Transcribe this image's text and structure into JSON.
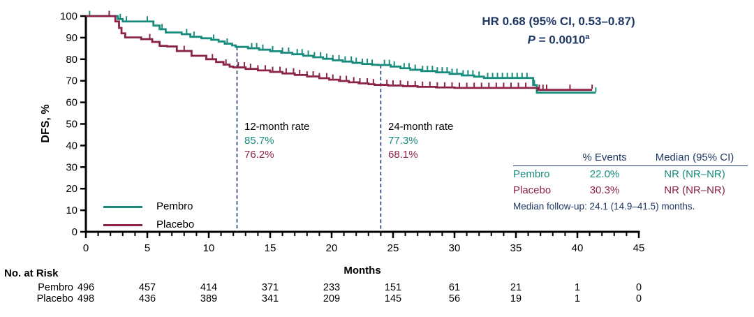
{
  "hr_annotation": {
    "line1": "HR 0.68 (95% CI, 0.53–0.87)",
    "p_italic": "P",
    "p_rest": " = 0.0010",
    "p_sup": "a"
  },
  "chart_data": {
    "type": "line",
    "subtype": "kaplan-meier-step",
    "title": "",
    "xlabel": "Months",
    "ylabel": "DFS, %",
    "xlim": [
      0,
      45
    ],
    "ylim": [
      0,
      100
    ],
    "x_major_ticks": [
      0,
      5,
      10,
      15,
      20,
      25,
      30,
      35,
      40,
      45
    ],
    "x_minor_tick_every": 1,
    "y_ticks": [
      0,
      10,
      20,
      30,
      40,
      50,
      60,
      70,
      80,
      90,
      100
    ],
    "grid": false,
    "legend_position": "lower-left",
    "colors": {
      "pembro": "#178C7D",
      "placebo": "#8C2346",
      "annotation_navy": "#1F3864"
    },
    "reference_lines": [
      {
        "month": 12.3,
        "top_value": 85.7,
        "style": "dashed"
      },
      {
        "month": 24.0,
        "top_value": 77.3,
        "style": "dashed"
      }
    ],
    "rate_annotations": [
      {
        "label": "12-month rate",
        "pembro": "85.7%",
        "placebo": "76.2%"
      },
      {
        "label": "24-month rate",
        "pembro": "77.3%",
        "placebo": "68.1%"
      }
    ],
    "series": [
      {
        "name": "Pembro",
        "color": "#178C7D",
        "steps": [
          [
            0,
            100
          ],
          [
            2.6,
            98.6
          ],
          [
            3.0,
            97.5
          ],
          [
            5.5,
            95.6
          ],
          [
            6.0,
            93.9
          ],
          [
            6.5,
            92.4
          ],
          [
            7.8,
            91.6
          ],
          [
            8.5,
            90.4
          ],
          [
            9.4,
            89.7
          ],
          [
            10.2,
            89.0
          ],
          [
            10.8,
            88.2
          ],
          [
            11.3,
            87.2
          ],
          [
            11.9,
            86.4
          ],
          [
            12.2,
            85.7
          ],
          [
            13.2,
            85.1
          ],
          [
            14.1,
            84.4
          ],
          [
            15.0,
            83.7
          ],
          [
            15.9,
            83.0
          ],
          [
            16.8,
            82.3
          ],
          [
            17.7,
            81.6
          ],
          [
            18.5,
            80.9
          ],
          [
            19.3,
            80.2
          ],
          [
            20.1,
            79.5
          ],
          [
            20.9,
            78.9
          ],
          [
            21.7,
            78.3
          ],
          [
            22.5,
            77.8
          ],
          [
            23.3,
            77.4
          ],
          [
            23.8,
            77.3
          ],
          [
            24.8,
            76.6
          ],
          [
            25.6,
            75.8
          ],
          [
            26.4,
            75.1
          ],
          [
            27.3,
            74.5
          ],
          [
            28.5,
            73.9
          ],
          [
            29.6,
            73.2
          ],
          [
            30.6,
            72.5
          ],
          [
            31.6,
            71.9
          ],
          [
            32.4,
            71.3
          ],
          [
            36.4,
            68.0
          ],
          [
            36.7,
            64.5
          ],
          [
            41.5,
            64.5
          ]
        ],
        "censors": [
          0.3,
          2.8,
          3.3,
          5.0,
          6.2,
          8.2,
          8.8,
          10.4,
          11.5,
          13.5,
          13.9,
          14.4,
          15.2,
          16.0,
          16.5,
          17.2,
          17.6,
          18.1,
          18.6,
          19.1,
          19.6,
          20.1,
          20.6,
          21.1,
          21.6,
          22.0,
          22.5,
          22.9,
          23.3,
          24.3,
          24.7,
          25.1,
          25.9,
          26.3,
          26.8,
          27.4,
          27.8,
          28.2,
          28.6,
          29.0,
          29.4,
          29.8,
          30.2,
          30.7,
          31.1,
          31.5,
          32.0,
          32.7,
          33.1,
          33.5,
          33.9,
          34.3,
          34.7,
          35.1,
          35.5,
          35.9,
          36.5,
          41.5
        ]
      },
      {
        "name": "Placebo",
        "color": "#8C2346",
        "steps": [
          [
            0,
            100
          ],
          [
            2.4,
            97.5
          ],
          [
            2.7,
            94.5
          ],
          [
            2.9,
            92.0
          ],
          [
            3.2,
            90.1
          ],
          [
            4.5,
            89.3
          ],
          [
            5.4,
            88.0
          ],
          [
            6.0,
            86.2
          ],
          [
            6.6,
            85.9
          ],
          [
            7.4,
            83.8
          ],
          [
            8.6,
            81.6
          ],
          [
            9.8,
            80.0
          ],
          [
            10.6,
            78.7
          ],
          [
            11.2,
            77.5
          ],
          [
            11.7,
            76.6
          ],
          [
            12.0,
            76.2
          ],
          [
            13.0,
            75.5
          ],
          [
            14.0,
            74.8
          ],
          [
            15.0,
            74.1
          ],
          [
            16.0,
            73.4
          ],
          [
            17.0,
            72.7
          ],
          [
            18.0,
            72.0
          ],
          [
            19.0,
            71.2
          ],
          [
            19.8,
            70.5
          ],
          [
            20.6,
            69.9
          ],
          [
            21.4,
            69.3
          ],
          [
            22.2,
            68.8
          ],
          [
            23.0,
            68.4
          ],
          [
            23.5,
            68.1
          ],
          [
            24.6,
            67.8
          ],
          [
            25.8,
            67.5
          ],
          [
            27.0,
            67.2
          ],
          [
            28.5,
            66.9
          ],
          [
            30.0,
            66.7
          ],
          [
            36.8,
            65.8
          ],
          [
            41.2,
            65.8
          ]
        ],
        "censors": [
          1.9,
          5.2,
          8.0,
          10.3,
          11.4,
          12.4,
          12.9,
          13.4,
          14.0,
          14.6,
          15.2,
          15.8,
          16.3,
          16.9,
          17.4,
          18.0,
          18.5,
          19.0,
          19.6,
          20.1,
          20.7,
          21.2,
          21.8,
          22.3,
          22.9,
          23.4,
          24.5,
          25.0,
          25.6,
          26.2,
          26.8,
          27.4,
          28.0,
          28.6,
          29.2,
          29.8,
          30.4,
          31.0,
          31.6,
          32.2,
          32.8,
          33.4,
          34.0,
          34.6,
          35.2,
          35.8,
          36.9,
          37.2,
          37.5,
          39.4,
          41.2
        ]
      }
    ],
    "risk_table": {
      "title": "No. at Risk",
      "months": [
        0,
        5,
        10,
        15,
        20,
        25,
        30,
        35,
        40,
        45
      ],
      "rows": [
        {
          "label": "Pembro",
          "values": [
            496,
            457,
            414,
            371,
            233,
            151,
            61,
            21,
            1,
            0
          ]
        },
        {
          "label": "Placebo",
          "values": [
            498,
            436,
            389,
            341,
            209,
            145,
            56,
            19,
            1,
            0
          ]
        }
      ]
    },
    "summary_table": {
      "headers": [
        "% Events",
        "Median (95% CI)"
      ],
      "rows": [
        {
          "label": "Pembro",
          "events": "22.0%",
          "median": "NR (NR–NR)"
        },
        {
          "label": "Placebo",
          "events": "30.3%",
          "median": "NR (NR–NR)"
        }
      ],
      "footnote": "Median follow-up: 24.1 (14.9–41.5) months."
    }
  }
}
